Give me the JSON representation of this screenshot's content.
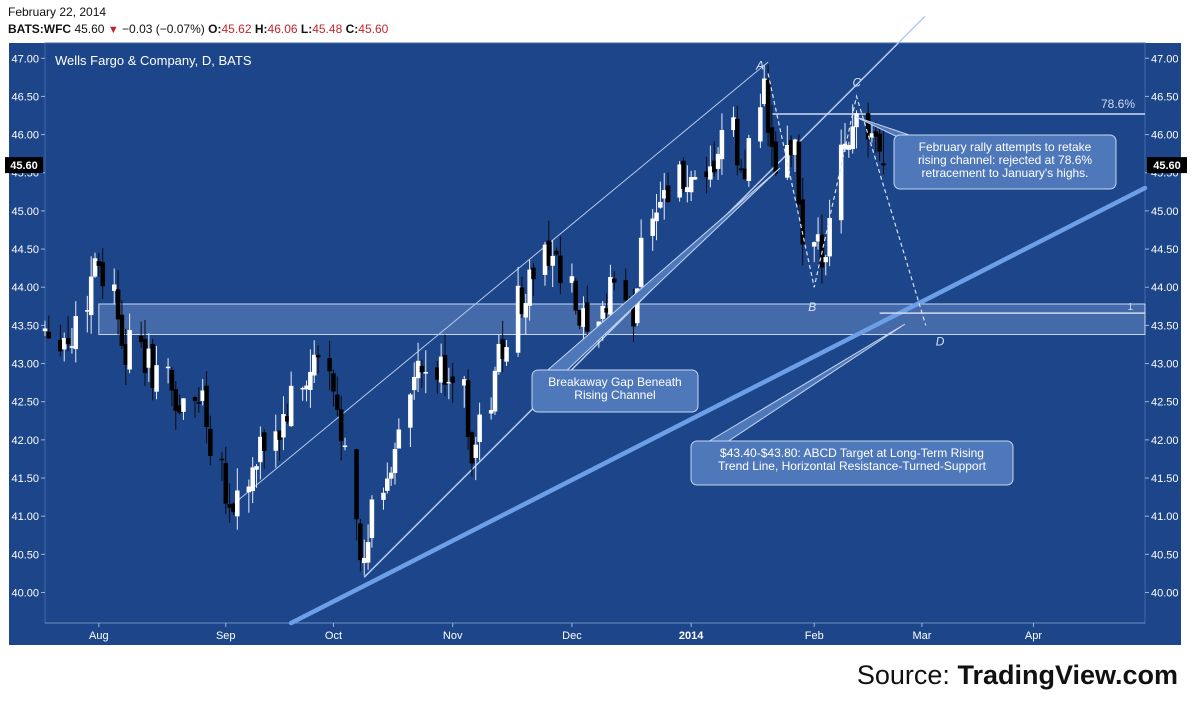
{
  "header": {
    "date": "February 22, 2014",
    "symbol": "BATS:WFC",
    "last": "45.60",
    "change": "−0.03 (−0.07%)",
    "open_label": "O:",
    "open": "45.62",
    "high_label": "H:",
    "high": "46.06",
    "low_label": "L:",
    "low": "45.48",
    "close_label": "C:",
    "close": "45.60"
  },
  "source": {
    "prefix": "Source: ",
    "site": "TradingView.com"
  },
  "colors": {
    "background": "#1d4589",
    "up_candle": "#ffffff",
    "down_candle": "#000000",
    "trendline": "#6d9fe8",
    "channel": "#b8ccef",
    "zone": "#8fb0e4",
    "callout": "#4f78bb"
  },
  "chart_data": {
    "type": "candlestick",
    "title": "Wells Fargo & Company, D, BATS",
    "ylim": [
      39.6,
      47.2
    ],
    "y_ticks": [
      "40.00",
      "40.50",
      "41.00",
      "41.50",
      "42.00",
      "42.50",
      "43.00",
      "43.50",
      "44.00",
      "44.50",
      "45.00",
      "45.50",
      "46.00",
      "46.50",
      "47.00"
    ],
    "last_price_label": "45.60",
    "x_ticks": [
      {
        "label": "Aug",
        "date": "2013-08-01"
      },
      {
        "label": "Sep",
        "date": "2013-09-03"
      },
      {
        "label": "Oct",
        "date": "2013-10-01"
      },
      {
        "label": "Nov",
        "date": "2013-11-01"
      },
      {
        "label": "Dec",
        "date": "2013-12-02"
      },
      {
        "label": "2014",
        "date": "2014-01-02"
      },
      {
        "label": "Feb",
        "date": "2014-02-03"
      },
      {
        "label": "Mar",
        "date": "2014-03-03"
      },
      {
        "label": "Apr",
        "date": "2014-04-01"
      }
    ],
    "x_start": "2013-07-18",
    "x_end": "2014-04-30",
    "anchors": [
      {
        "close": 43.5,
        "date": "2013-07-18"
      },
      {
        "close": 43.3,
        "date": "2013-07-25"
      },
      {
        "close": 44.4,
        "date": "2013-08-01"
      },
      {
        "close": 43.2,
        "date": "2013-08-09"
      },
      {
        "close": 42.9,
        "date": "2013-08-16"
      },
      {
        "close": 42.4,
        "date": "2013-08-23"
      },
      {
        "close": 42.6,
        "date": "2013-08-28"
      },
      {
        "close": 41.1,
        "date": "2013-09-05"
      },
      {
        "close": 41.5,
        "date": "2013-09-10"
      },
      {
        "close": 42.1,
        "date": "2013-09-17"
      },
      {
        "close": 43.0,
        "date": "2013-09-27"
      },
      {
        "close": 42.1,
        "date": "2013-10-04"
      },
      {
        "close": 40.3,
        "date": "2013-10-09"
      },
      {
        "close": 41.4,
        "date": "2013-10-15"
      },
      {
        "close": 42.8,
        "date": "2013-10-23"
      },
      {
        "close": 42.9,
        "date": "2013-11-01"
      },
      {
        "close": 41.9,
        "date": "2013-11-07"
      },
      {
        "close": 43.1,
        "date": "2013-11-14"
      },
      {
        "close": 43.8,
        "date": "2013-11-19"
      },
      {
        "close": 44.5,
        "date": "2013-11-27"
      },
      {
        "close": 43.5,
        "date": "2013-12-05"
      },
      {
        "close": 43.3,
        "date": "2013-12-09"
      },
      {
        "close": 44.1,
        "date": "2013-12-13"
      },
      {
        "close": 43.6,
        "date": "2013-12-18"
      },
      {
        "close": 45.1,
        "date": "2013-12-24"
      },
      {
        "close": 45.4,
        "date": "2013-12-31"
      },
      {
        "close": 45.2,
        "date": "2014-01-06"
      },
      {
        "close": 46.0,
        "date": "2014-01-13"
      },
      {
        "close": 45.4,
        "date": "2014-01-16"
      },
      {
        "close": 46.6,
        "date": "2014-01-21"
      },
      {
        "close": 45.6,
        "date": "2014-01-24"
      },
      {
        "close": 45.8,
        "date": "2014-01-29"
      },
      {
        "close": 44.4,
        "date": "2014-02-03"
      },
      {
        "close": 44.5,
        "date": "2014-02-06"
      },
      {
        "close": 45.8,
        "date": "2014-02-11"
      },
      {
        "close": 46.2,
        "date": "2014-02-14"
      },
      {
        "close": 45.6,
        "date": "2014-02-21"
      }
    ],
    "annotations": {
      "points": [
        {
          "label": "A",
          "date": "2014-01-22",
          "price": 46.8
        },
        {
          "label": "B",
          "date": "2014-02-03",
          "price": 44.0
        },
        {
          "label": "C",
          "date": "2014-02-14",
          "price": 46.5
        },
        {
          "label": "D",
          "date": "2014-03-04",
          "price": 43.5
        }
      ],
      "fib_label": "78.6%",
      "level_label": "1",
      "resistance_zone": [
        43.38,
        43.78
      ],
      "callouts": [
        {
          "lines": [
            "February rally attempts to retake",
            "rising channel: rejected at 78.6%",
            "retracement to January's highs."
          ]
        },
        {
          "lines": [
            "Breakaway Gap Beneath",
            "Rising Channel"
          ]
        },
        {
          "lines": [
            "$43.40-$43.80: ABCD Target at Long-Term Rising",
            "Trend Line, Horizontal Resistance-Turned-Support"
          ]
        }
      ]
    }
  }
}
